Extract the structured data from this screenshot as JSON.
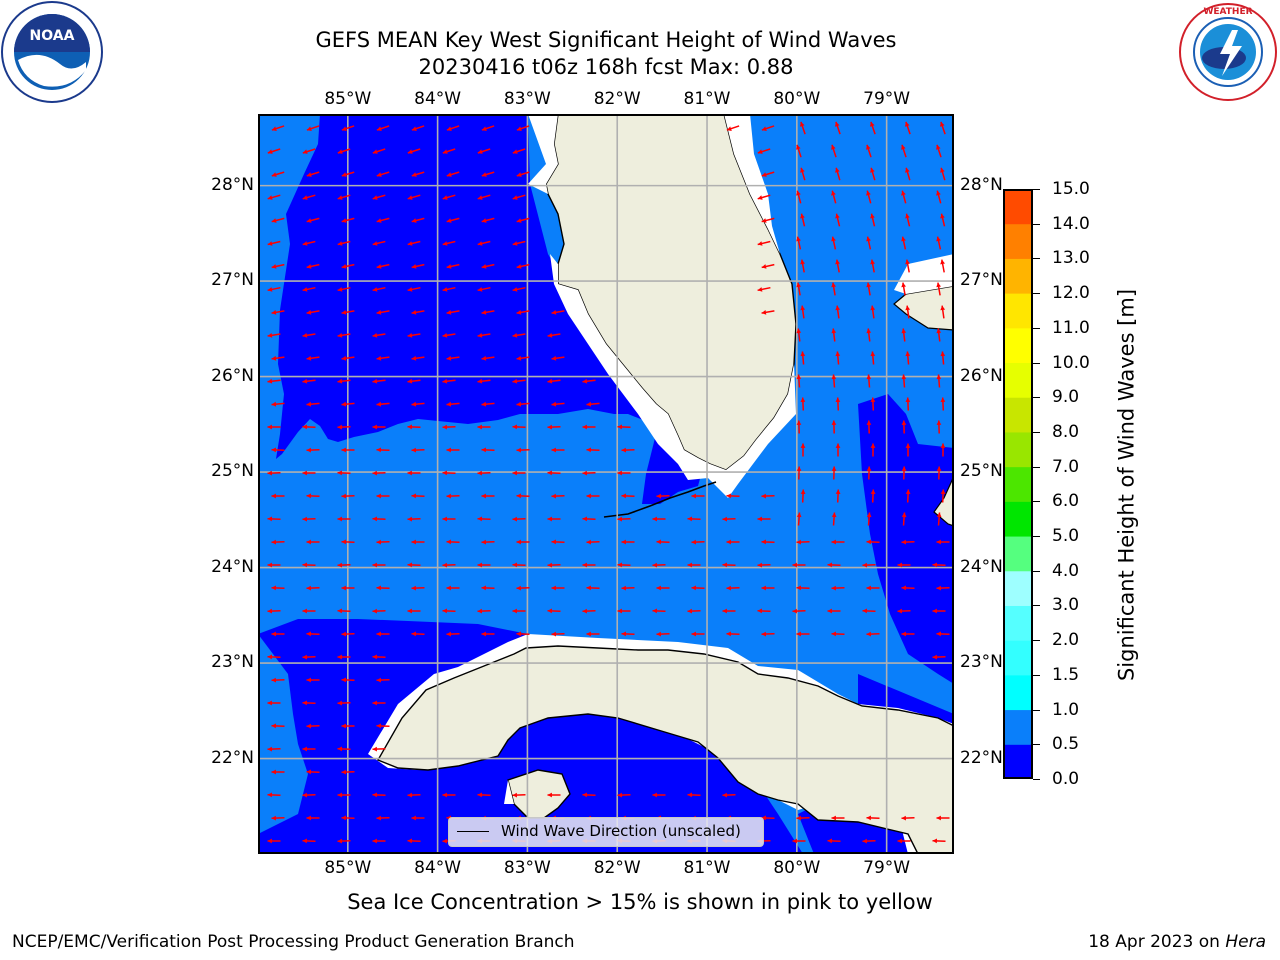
{
  "title": {
    "line1": "GEFS MEAN Key West Significant Height of Wind Waves",
    "line2": "20230416 t06z 168h fcst   Max: 0.88"
  },
  "logos": {
    "left": {
      "icon": "noaa-logo",
      "text": "NOAA",
      "ring_text": "NATIONAL OCEANIC AND ATMOSPHERIC ADMINISTRATION · U.S. DEPARTMENT OF COMMERCE"
    },
    "right": {
      "icon": "nws-logo",
      "ring_text": "NATIONAL WEATHER SERVICE"
    }
  },
  "map": {
    "lon_ticks": [
      "85°W",
      "84°W",
      "83°W",
      "82°W",
      "81°W",
      "80°W",
      "79°W"
    ],
    "lat_ticks": [
      "28°N",
      "27°N",
      "26°N",
      "25°N",
      "24°N",
      "23°N",
      "22°N"
    ],
    "lon_values": [
      -85,
      -84,
      -83,
      -82,
      -81,
      -80,
      -79
    ],
    "lat_values": [
      28,
      27,
      26,
      25,
      24,
      23,
      22
    ],
    "extent": {
      "lon_min": -86.0,
      "lon_max": -78.25,
      "lat_min": 21.0,
      "lat_max": 28.75
    },
    "colors": {
      "ocean_low": "#0000ff",
      "ocean_mid": "#0a7ffa",
      "land": "#eeeedd",
      "arrows": "#ff0000",
      "grid": "#b0b0b0",
      "coast": "#000000"
    },
    "legend": "Wind Wave Direction (unscaled)",
    "arrow_direction": "westward, veering to north-northwest east of Florida"
  },
  "colorbar": {
    "label": "Significant Height of Wind Waves [m]",
    "ticks": [
      "0.0",
      "0.5",
      "1.0",
      "1.5",
      "2.0",
      "3.0",
      "4.0",
      "5.0",
      "6.0",
      "7.0",
      "8.0",
      "9.0",
      "10.0",
      "11.0",
      "12.0",
      "13.0",
      "14.0",
      "15.0"
    ],
    "colors": [
      "#0000ff",
      "#0a7ffa",
      "#00ffff",
      "#33ffff",
      "#55ffff",
      "#9effff",
      "#55ff7f",
      "#00e600",
      "#4ce600",
      "#99e600",
      "#c8e600",
      "#e6ff00",
      "#ffff00",
      "#ffe600",
      "#ffb400",
      "#ff8000",
      "#ff4b00",
      "#ff1e00",
      "#ff0000"
    ]
  },
  "chart_data": {
    "type": "heatmap",
    "title": "GEFS MEAN Key West Significant Height of Wind Waves",
    "subtitle": "20230416 t06z 168h fcst   Max: 0.88",
    "variable": "Significant Height of Wind Waves [m]",
    "max_value": 0.88,
    "levels": [
      0.0,
      0.5,
      1.0,
      1.5,
      2.0,
      3.0,
      4.0,
      5.0,
      6.0,
      7.0,
      8.0,
      9.0,
      10.0,
      11.0,
      12.0,
      13.0,
      14.0,
      15.0
    ],
    "xlabel": "",
    "ylabel": "",
    "xlim": [
      -86.0,
      -78.25
    ],
    "ylim": [
      21.0,
      28.75
    ],
    "grid": true,
    "legend_position": "bottom-center"
  },
  "note": "Sea Ice Concentration > 15% is shown in pink to yellow",
  "footer": {
    "left": "NCEP/EMC/Verification Post Processing Product Generation Branch",
    "right_date": "18 Apr 2023 on ",
    "right_host": "Hera"
  }
}
